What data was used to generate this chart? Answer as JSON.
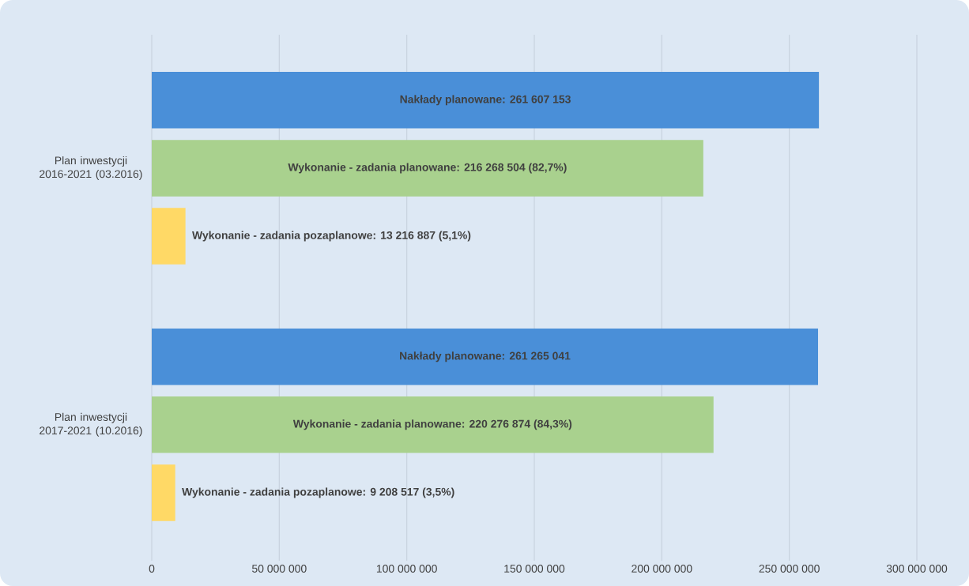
{
  "chart_data": {
    "type": "bar",
    "orientation": "horizontal",
    "categories": [
      "Plan inwestycji 2016-2021 (03.2016)",
      "Plan inwestycji 2017-2021 (10.2016)"
    ],
    "series": [
      {
        "color": "#4a8fd8",
        "values": [
          261607153,
          261265041
        ],
        "value_labels": [
          "Nakłady planowane: 261 607 153",
          "Nakłady planowane: 261 265 041"
        ]
      },
      {
        "color": "#a9d18e",
        "values": [
          216268504,
          220276874
        ],
        "value_labels": [
          "Wykonanie - zadania planowane: 216 268 504 (82,7%)",
          "Wykonanie - zadania planowane: 220 276 874 (84,3%)"
        ]
      },
      {
        "color": "#ffd966",
        "values": [
          13216887,
          9208517
        ],
        "value_labels": [
          "Wykonanie - zadania pozaplanowe: 13 216 887 (5,1%)",
          "Wykonanie - zadania pozaplanowe: 9 208 517 (3,5%)"
        ]
      }
    ],
    "xlim": [
      0,
      300000000
    ],
    "xticks": [
      0,
      {
        "value": 50000000,
        "label": "50 000 000"
      },
      {
        "value": 100000000,
        "label": "100 000 000"
      },
      {
        "value": 150000000,
        "label": "150 000 000"
      },
      {
        "value": 200000000,
        "label": "200 000 000"
      },
      {
        "value": 250000000,
        "label": "250 000 000"
      },
      {
        "value": 300000000,
        "label": "300 000 000"
      }
    ],
    "grid": "x"
  }
}
